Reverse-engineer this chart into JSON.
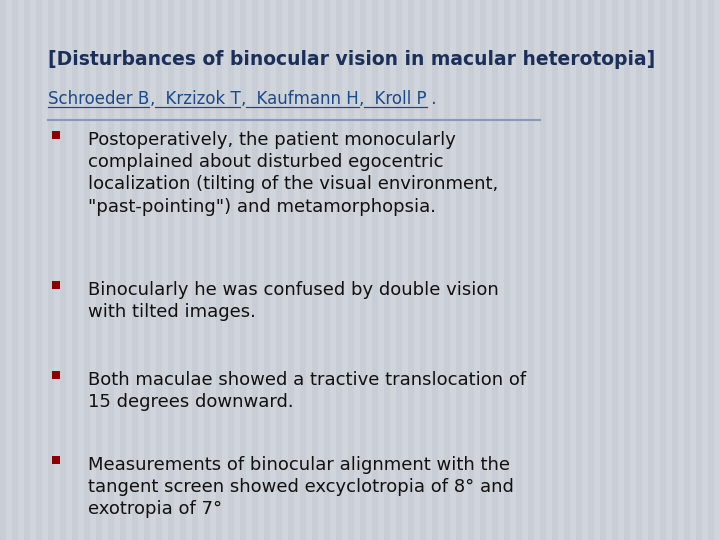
{
  "title": "[Disturbances of binocular vision in macular heterotopia]",
  "title_color": "#1a2f5a",
  "title_fontsize": 13.5,
  "authors_color": "#1a4a8a",
  "authors_fontsize": 12,
  "bullet_color": "#8b0000",
  "bullet_text_color": "#111111",
  "bullet_fontsize": 13,
  "bullets": [
    "Postoperatively, the patient monocularly\ncomplained about disturbed egocentric\nlocalization (tilting of the visual environment,\n\"past-pointing\") and metamorphopsia.",
    "Binocularly he was confused by double vision\nwith tilted images.",
    "Both maculae showed a tractive translocation of\n15 degrees downward.",
    "Measurements of binocular alignment with the\ntangent screen showed excyclotropia of 8° and\nexotropia of 7°"
  ],
  "bg_color": "#d0d4db",
  "stripe_color": "#c4c8d0",
  "divider_color": "#8899bb",
  "fig_width": 7.2,
  "fig_height": 5.4,
  "dpi": 100
}
